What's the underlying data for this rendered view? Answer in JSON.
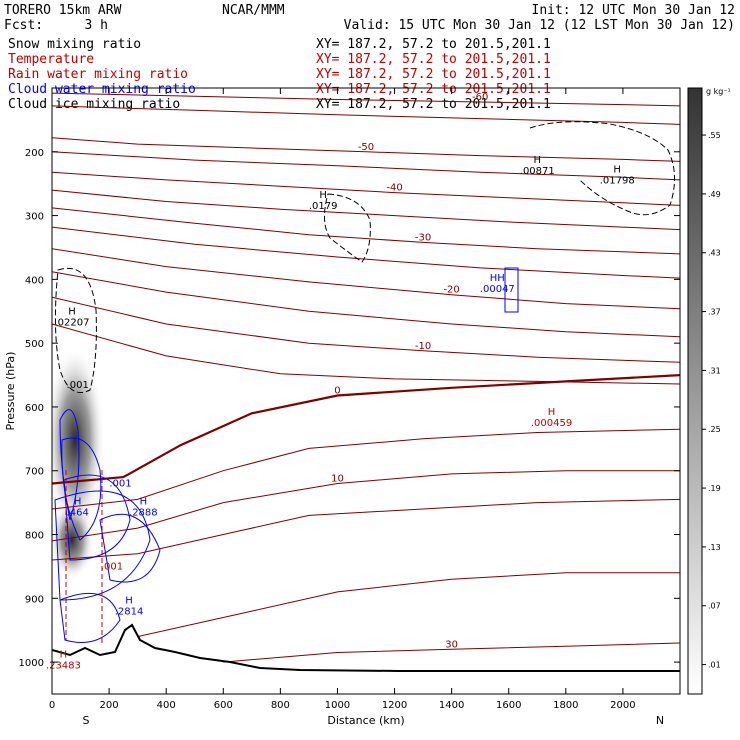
{
  "header": {
    "model": "TORERO  15km ARW",
    "center": "NCAR/MMM",
    "init": "Init: 12 UTC Mon 30 Jan 12",
    "fcst_label": "Fcst:",
    "fcst_value": "3 h",
    "valid": "Valid: 15 UTC Mon 30 Jan 12 (12 LST Mon 30 Jan 12)"
  },
  "legend": [
    {
      "name": "Snow mixing ratio",
      "xy": "XY= 187.2, 57.2 to 201.5,201.1",
      "color": "#000000"
    },
    {
      "name": "Temperature",
      "xy": "XY= 187.2, 57.2 to 201.5,201.1",
      "color": "#c00000"
    },
    {
      "name": "Rain water mixing ratio",
      "xy": "XY= 187.2, 57.2 to 201.5,201.1",
      "color": "#c00000"
    },
    {
      "name": "Cloud water mixing ratio",
      "xy": "XY= 187.2, 57.2 to 201.5,201.1",
      "color": "#0000ff"
    },
    {
      "name": "Cloud ice mixing ratio",
      "xy": "XY= 187.2, 57.2 to 201.5,201.1",
      "color": "#000000"
    }
  ],
  "chart_data": {
    "type": "contour",
    "xlabel": "Distance (km)",
    "ylabel": "Pressure (hPa)",
    "x_ticks": [
      0,
      200,
      400,
      600,
      800,
      1000,
      1200,
      1400,
      1600,
      1800,
      2000
    ],
    "y_ticks": [
      200,
      300,
      400,
      500,
      600,
      700,
      800,
      900,
      1000
    ],
    "xlim": [
      0,
      2200
    ],
    "ylim": [
      1050,
      100
    ],
    "x_ends": {
      "left": "S",
      "right": "N"
    },
    "colorbar": {
      "unit": "g kg⁻¹",
      "ticks": [
        ".01",
        ".07",
        ".13",
        ".19",
        ".25",
        ".31",
        ".37",
        ".43",
        ".49",
        ".55"
      ]
    },
    "temperature_contours": [
      {
        "value": -60,
        "label": "-60",
        "points": [
          [
            0,
            108
          ],
          [
            500,
            113
          ],
          [
            1000,
            118
          ],
          [
            1500,
            122
          ],
          [
            2000,
            126
          ],
          [
            2200,
            128
          ]
        ]
      },
      {
        "value": -55,
        "label": "",
        "points": [
          [
            0,
            128
          ],
          [
            500,
            135
          ],
          [
            1000,
            142
          ],
          [
            1500,
            148
          ],
          [
            2000,
            154
          ],
          [
            2200,
            157
          ]
        ]
      },
      {
        "value": -50,
        "label": "-50",
        "points": [
          [
            0,
            178
          ],
          [
            300,
            188
          ],
          [
            700,
            194
          ],
          [
            1100,
            200
          ],
          [
            1500,
            206
          ],
          [
            2000,
            212
          ],
          [
            2200,
            215
          ]
        ]
      },
      {
        "value": -45,
        "label": "",
        "points": [
          [
            0,
            200
          ],
          [
            500,
            213
          ],
          [
            1000,
            222
          ],
          [
            1500,
            232
          ],
          [
            2000,
            240
          ],
          [
            2200,
            244
          ]
        ]
      },
      {
        "value": -40,
        "label": "-40",
        "points": [
          [
            0,
            232
          ],
          [
            400,
            244
          ],
          [
            800,
            254
          ],
          [
            1200,
            264
          ],
          [
            1600,
            272
          ],
          [
            2000,
            280
          ],
          [
            2200,
            284
          ]
        ]
      },
      {
        "value": -35,
        "label": "",
        "points": [
          [
            0,
            260
          ],
          [
            400,
            278
          ],
          [
            800,
            290
          ],
          [
            1200,
            300
          ],
          [
            1600,
            310
          ],
          [
            2000,
            318
          ],
          [
            2200,
            322
          ]
        ]
      },
      {
        "value": -30,
        "label": "-30",
        "points": [
          [
            0,
            288
          ],
          [
            500,
            312
          ],
          [
            900,
            330
          ],
          [
            1300,
            342
          ],
          [
            1700,
            352
          ],
          [
            2200,
            360
          ]
        ]
      },
      {
        "value": -25,
        "label": "",
        "points": [
          [
            0,
            318
          ],
          [
            500,
            345
          ],
          [
            1000,
            365
          ],
          [
            1500,
            382
          ],
          [
            2000,
            394
          ],
          [
            2200,
            398
          ]
        ]
      },
      {
        "value": -20,
        "label": "-20",
        "points": [
          [
            0,
            352
          ],
          [
            400,
            380
          ],
          [
            900,
            404
          ],
          [
            1400,
            424
          ],
          [
            1800,
            438
          ],
          [
            2200,
            446
          ]
        ]
      },
      {
        "value": -15,
        "label": "",
        "points": [
          [
            0,
            388
          ],
          [
            400,
            420
          ],
          [
            900,
            450
          ],
          [
            1400,
            470
          ],
          [
            1800,
            482
          ],
          [
            2200,
            490
          ]
        ]
      },
      {
        "value": -10,
        "label": "-10",
        "points": [
          [
            0,
            428
          ],
          [
            400,
            470
          ],
          [
            900,
            500
          ],
          [
            1300,
            512
          ],
          [
            1700,
            522
          ],
          [
            2200,
            530
          ]
        ]
      },
      {
        "value": -5,
        "label": "",
        "points": [
          [
            0,
            470
          ],
          [
            400,
            520
          ],
          [
            800,
            548
          ],
          [
            1200,
            556
          ],
          [
            1700,
            560
          ],
          [
            2200,
            564
          ]
        ]
      },
      {
        "value": 0,
        "label": "0",
        "points": [
          [
            0,
            720
          ],
          [
            250,
            710
          ],
          [
            450,
            660
          ],
          [
            700,
            610
          ],
          [
            1000,
            582
          ],
          [
            1400,
            570
          ],
          [
            1800,
            560
          ],
          [
            2200,
            550
          ]
        ]
      },
      {
        "value": 5,
        "label": "",
        "points": [
          [
            0,
            760
          ],
          [
            300,
            745
          ],
          [
            600,
            700
          ],
          [
            900,
            665
          ],
          [
            1300,
            650
          ],
          [
            1700,
            640
          ],
          [
            2200,
            635
          ]
        ]
      },
      {
        "value": 10,
        "label": "10",
        "points": [
          [
            0,
            810
          ],
          [
            300,
            790
          ],
          [
            600,
            750
          ],
          [
            1000,
            720
          ],
          [
            1400,
            705
          ],
          [
            1800,
            700
          ],
          [
            2200,
            700
          ]
        ]
      },
      {
        "value": 15,
        "label": "",
        "points": [
          [
            0,
            840
          ],
          [
            300,
            830
          ],
          [
            600,
            800
          ],
          [
            900,
            770
          ],
          [
            1300,
            760
          ],
          [
            1700,
            750
          ],
          [
            2200,
            745
          ]
        ]
      },
      {
        "value": 20,
        "label": "",
        "points": [
          [
            300,
            960
          ],
          [
            700,
            920
          ],
          [
            1000,
            890
          ],
          [
            1400,
            870
          ],
          [
            1800,
            860
          ],
          [
            2200,
            860
          ]
        ]
      },
      {
        "value": 30,
        "label": "30",
        "points": [
          [
            600,
            1000
          ],
          [
            1000,
            985
          ],
          [
            1400,
            980
          ],
          [
            1800,
            975
          ],
          [
            2200,
            970
          ]
        ]
      }
    ],
    "freezing_level": {
      "label": "0"
    },
    "maxima": [
      {
        "field": "snow",
        "label": "H",
        "value": ".00871",
        "x": 1700,
        "p": 235
      },
      {
        "field": "snow",
        "label": "H",
        "value": ".01798",
        "x": 1980,
        "p": 250
      },
      {
        "field": "snow",
        "label": "H",
        "value": ".0179",
        "x": 950,
        "p": 290
      },
      {
        "field": "snow",
        "label": "H",
        "value": ".02207",
        "x": 70,
        "p": 472
      },
      {
        "field": "cloud_ice",
        "label": "",
        "value": ".001",
        "x": 90,
        "p": 570
      },
      {
        "field": "rain",
        "label": "H",
        "value": ".000459",
        "x": 1750,
        "p": 630
      },
      {
        "field": "cloud_water",
        "label": "H",
        "value": ".464",
        "x": 90,
        "p": 770
      },
      {
        "field": "cloud_water",
        "label": "H",
        "value": ".2888",
        "x": 320,
        "p": 770
      },
      {
        "field": "cloud_water",
        "label": "",
        "value": ".001",
        "x": 240,
        "p": 725
      },
      {
        "field": "rain",
        "label": "",
        "value": ".001",
        "x": 210,
        "p": 855
      },
      {
        "field": "cloud_water",
        "label": "H",
        "value": ".2814",
        "x": 270,
        "p": 925
      },
      {
        "field": "rain",
        "label": "H",
        "value": ".23483",
        "x": 40,
        "p": 1010
      },
      {
        "field": "cloud_water",
        "label": "HH",
        "value": ".00047",
        "x": 1560,
        "p": 420
      }
    ]
  }
}
